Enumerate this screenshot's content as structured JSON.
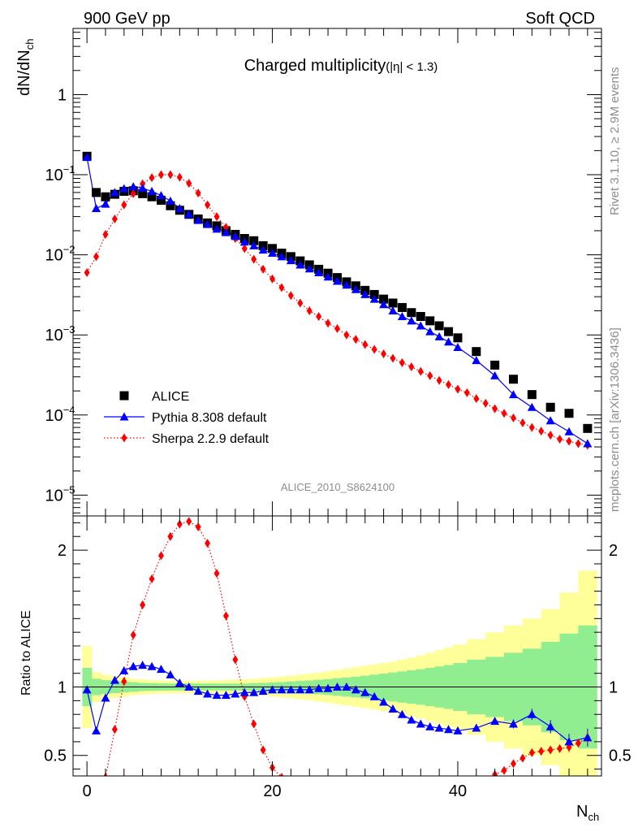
{
  "header": {
    "left_label": "900 GeV pp",
    "right_label": "Soft QCD"
  },
  "side_labels": {
    "rivet": "Rivet 3.1.10, ≥ 2.9M events",
    "mcplots": "mcplots.cern.ch [arXiv:1306.3436]"
  },
  "colors": {
    "alice": "#000000",
    "pythia": "#0000ff",
    "sherpa": "#ff0000",
    "band_inner": "#90ee90",
    "band_outer": "#ffff99"
  },
  "chart_data": [
    {
      "type": "scatter",
      "title": "Charged multiplicity",
      "title_suffix": "(|η| < 1.3)",
      "ylabel_base": "dN/dN",
      "ylabel_sub": "ch",
      "analysis_label": "ALICE_2010_S8624100",
      "yscale": "log",
      "ylim": [
        5.5e-06,
        6.7
      ],
      "xlim": [
        -1.5,
        55.5
      ],
      "ytick_exponents": [
        0,
        -1,
        -2,
        -3,
        -4,
        -5
      ],
      "ytick_labels": [
        "1",
        "10",
        "10",
        "10",
        "10",
        "10"
      ],
      "ytick_superscripts": [
        "",
        "−1",
        "−2",
        "−3",
        "−4",
        "−5"
      ],
      "legend": {
        "entries": [
          "ALICE",
          "Pythia 8.308 default",
          "Sherpa 2.2.9 default"
        ],
        "placement": "lower-left"
      },
      "series": [
        {
          "name": "ALICE",
          "marker": "square",
          "x": [
            0,
            1,
            2,
            3,
            4,
            5,
            6,
            7,
            8,
            9,
            10,
            11,
            12,
            13,
            14,
            15,
            16,
            17,
            18,
            19,
            20,
            21,
            22,
            23,
            24,
            25,
            26,
            27,
            28,
            29,
            30,
            31,
            32,
            33,
            34,
            35,
            36,
            37,
            38,
            39,
            40,
            42,
            44,
            46,
            48,
            50,
            52,
            54
          ],
          "y": [
            0.17,
            0.06,
            0.053,
            0.057,
            0.062,
            0.063,
            0.058,
            0.053,
            0.048,
            0.041,
            0.036,
            0.032,
            0.028,
            0.025,
            0.023,
            0.02,
            0.018,
            0.016,
            0.015,
            0.013,
            0.012,
            0.0105,
            0.0095,
            0.0084,
            0.0075,
            0.0066,
            0.0059,
            0.0052,
            0.0046,
            0.0041,
            0.0036,
            0.0032,
            0.0028,
            0.0025,
            0.0022,
            0.0019,
            0.0017,
            0.0015,
            0.0013,
            0.0011,
            0.00092,
            0.00062,
            0.00042,
            0.00028,
            0.00018,
            0.000125,
            0.000105,
            6.8e-05
          ]
        },
        {
          "name": "Pythia 8.308 default",
          "marker": "triangle",
          "x": [
            0,
            1,
            2,
            3,
            4,
            5,
            6,
            7,
            8,
            9,
            10,
            11,
            12,
            13,
            14,
            15,
            16,
            17,
            18,
            19,
            20,
            21,
            22,
            23,
            24,
            25,
            26,
            27,
            28,
            29,
            30,
            31,
            32,
            33,
            34,
            35,
            36,
            37,
            38,
            39,
            40,
            42,
            44,
            46,
            48,
            50,
            52,
            54
          ],
          "y": [
            0.165,
            0.038,
            0.043,
            0.06,
            0.067,
            0.071,
            0.068,
            0.062,
            0.055,
            0.047,
            0.038,
            0.032,
            0.027,
            0.024,
            0.021,
            0.019,
            0.017,
            0.0145,
            0.013,
            0.0115,
            0.0105,
            0.0095,
            0.0085,
            0.0075,
            0.0067,
            0.006,
            0.0053,
            0.0047,
            0.0042,
            0.0037,
            0.0032,
            0.0028,
            0.0024,
            0.002,
            0.0017,
            0.0015,
            0.0013,
            0.0011,
            0.00095,
            0.00082,
            0.0007,
            0.00048,
            0.00031,
            0.00018,
            0.000125,
            8.5e-05,
            6.2e-05,
            4.4e-05
          ]
        },
        {
          "name": "Sherpa 2.2.9 default",
          "marker": "diamond",
          "x": [
            0,
            1,
            2,
            3,
            4,
            5,
            6,
            7,
            8,
            9,
            10,
            11,
            12,
            13,
            14,
            15,
            16,
            17,
            18,
            19,
            20,
            21,
            22,
            23,
            24,
            25,
            26,
            27,
            28,
            29,
            30,
            31,
            32,
            33,
            34,
            35,
            36,
            37,
            38,
            39,
            40,
            41,
            42,
            43,
            44,
            45,
            46,
            47,
            48,
            49,
            50,
            51,
            52,
            53,
            54
          ],
          "y": [
            0.006,
            0.0095,
            0.018,
            0.028,
            0.042,
            0.058,
            0.077,
            0.092,
            0.1,
            0.1,
            0.093,
            0.078,
            0.059,
            0.042,
            0.03,
            0.022,
            0.016,
            0.012,
            0.0088,
            0.0066,
            0.005,
            0.0039,
            0.0031,
            0.0025,
            0.002,
            0.0017,
            0.0014,
            0.0012,
            0.001,
            0.00088,
            0.00076,
            0.00066,
            0.00058,
            0.00051,
            0.00045,
            0.0004,
            0.00035,
            0.00031,
            0.00027,
            0.00024,
            0.00021,
            0.00019,
            0.00016,
            0.00014,
            0.00012,
            0.000105,
            9.2e-05,
            8e-05,
            7e-05,
            6.3e-05,
            5.6e-05,
            5e-05,
            4.7e-05,
            4.4e-05,
            4.2e-05
          ]
        }
      ]
    },
    {
      "type": "line",
      "ylabel": "Ratio to ALICE",
      "ylim": [
        0.35,
        2.25
      ],
      "xlim": [
        -1.5,
        55.5
      ],
      "xlabel_base": "N",
      "xlabel_sub": "ch",
      "yticks": [
        0.5,
        1,
        2
      ],
      "ytick_labels": [
        "0.5",
        "1",
        "2"
      ],
      "xticks": [
        0,
        20,
        40
      ],
      "xtick_labels": [
        "0",
        "20",
        "40"
      ],
      "uncertainty_band": {
        "x_edges": [
          -0.5,
          0.5,
          1.5,
          2.5,
          3.5,
          4.5,
          5.5,
          6.5,
          7.5,
          8.5,
          9.5,
          10.5,
          11.5,
          12.5,
          13.5,
          14.5,
          15.5,
          16.5,
          17.5,
          18.5,
          19.5,
          20.5,
          21.5,
          22.5,
          23.5,
          24.5,
          25.5,
          26.5,
          27.5,
          28.5,
          29.5,
          30.5,
          31.5,
          32.5,
          33.5,
          34.5,
          35.5,
          36.5,
          37.5,
          38.5,
          39.5,
          41,
          43,
          45,
          47,
          49,
          51,
          53,
          55
        ],
        "inner_half_width": [
          0.14,
          0.06,
          0.05,
          0.045,
          0.04,
          0.035,
          0.03,
          0.028,
          0.026,
          0.025,
          0.025,
          0.025,
          0.025,
          0.025,
          0.025,
          0.025,
          0.025,
          0.025,
          0.027,
          0.03,
          0.033,
          0.036,
          0.04,
          0.044,
          0.048,
          0.053,
          0.058,
          0.064,
          0.07,
          0.076,
          0.083,
          0.09,
          0.098,
          0.106,
          0.114,
          0.122,
          0.13,
          0.14,
          0.15,
          0.16,
          0.175,
          0.2,
          0.22,
          0.25,
          0.28,
          0.33,
          0.39,
          0.45
        ],
        "outer_half_width": [
          0.3,
          0.11,
          0.09,
          0.08,
          0.07,
          0.06,
          0.055,
          0.05,
          0.048,
          0.046,
          0.045,
          0.045,
          0.045,
          0.046,
          0.048,
          0.05,
          0.053,
          0.056,
          0.06,
          0.065,
          0.07,
          0.076,
          0.083,
          0.09,
          0.098,
          0.106,
          0.115,
          0.125,
          0.135,
          0.145,
          0.155,
          0.165,
          0.175,
          0.185,
          0.2,
          0.215,
          0.23,
          0.25,
          0.27,
          0.29,
          0.31,
          0.35,
          0.4,
          0.45,
          0.5,
          0.57,
          0.69,
          0.85
        ]
      },
      "series": [
        {
          "name": "Pythia 8.308 default",
          "x": [
            0,
            1,
            2,
            3,
            4,
            5,
            6,
            7,
            8,
            9,
            10,
            11,
            12,
            13,
            14,
            15,
            16,
            17,
            18,
            19,
            20,
            21,
            22,
            23,
            24,
            25,
            26,
            27,
            28,
            29,
            30,
            31,
            32,
            33,
            34,
            35,
            36,
            37,
            38,
            39,
            40,
            42,
            44,
            46,
            48,
            50,
            52,
            54
          ],
          "y": [
            0.98,
            0.68,
            0.92,
            1.05,
            1.12,
            1.15,
            1.16,
            1.15,
            1.13,
            1.09,
            1.03,
            1.0,
            0.97,
            0.95,
            0.94,
            0.94,
            0.95,
            0.96,
            0.96,
            0.97,
            0.98,
            0.98,
            0.98,
            0.98,
            0.98,
            0.99,
            0.99,
            1.0,
            1.0,
            0.98,
            0.96,
            0.93,
            0.89,
            0.84,
            0.8,
            0.76,
            0.73,
            0.71,
            0.7,
            0.69,
            0.68,
            0.7,
            0.75,
            0.73,
            0.8,
            0.71,
            0.6,
            0.63
          ]
        },
        {
          "name": "Sherpa 2.2.9 default",
          "x": [
            2,
            3,
            4,
            5,
            6,
            7,
            8,
            9,
            10,
            11,
            12,
            13,
            14,
            15,
            16,
            17,
            18,
            19,
            20,
            21,
            44,
            45,
            46,
            47,
            48,
            49,
            50,
            51,
            52,
            53,
            54
          ],
          "y": [
            0.34,
            0.69,
            1.04,
            1.38,
            1.6,
            1.79,
            1.96,
            2.1,
            2.19,
            2.21,
            2.17,
            2.05,
            1.83,
            1.52,
            1.2,
            0.93,
            0.73,
            0.54,
            0.41,
            0.34,
            0.36,
            0.39,
            0.44,
            0.48,
            0.52,
            0.53,
            0.54,
            0.55,
            0.56,
            0.59,
            0.63
          ]
        }
      ]
    }
  ]
}
